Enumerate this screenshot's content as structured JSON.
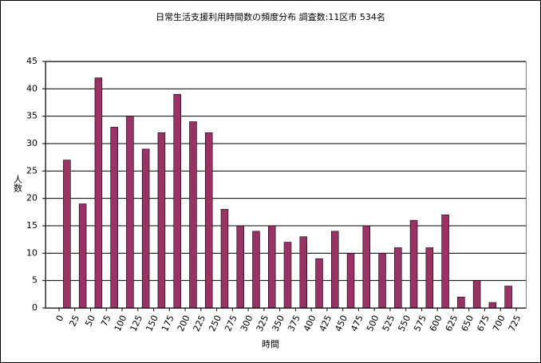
{
  "chart_data": {
    "type": "histogram",
    "title": "日常生活支援利用時間数の頻度分布  調査数:11区市  534名",
    "xlabel": "時間",
    "ylabel": "人数",
    "bins": [
      0,
      25,
      50,
      75,
      100,
      125,
      150,
      175,
      200,
      225,
      250,
      275,
      300,
      325,
      350,
      375,
      400,
      425,
      450,
      475,
      500,
      525,
      550,
      575,
      600,
      625,
      650,
      675,
      700,
      725
    ],
    "values": [
      27,
      19,
      42,
      33,
      35,
      29,
      32,
      39,
      34,
      32,
      18,
      15,
      14,
      15,
      12,
      13,
      9,
      14,
      10,
      15,
      10,
      11,
      16,
      11,
      17,
      2,
      5,
      1,
      4
    ],
    "color": "#993366",
    "ylim": [
      0,
      45
    ],
    "yticks": [
      0,
      5,
      10,
      15,
      20,
      25,
      30,
      35,
      40,
      45
    ],
    "grid": true
  }
}
